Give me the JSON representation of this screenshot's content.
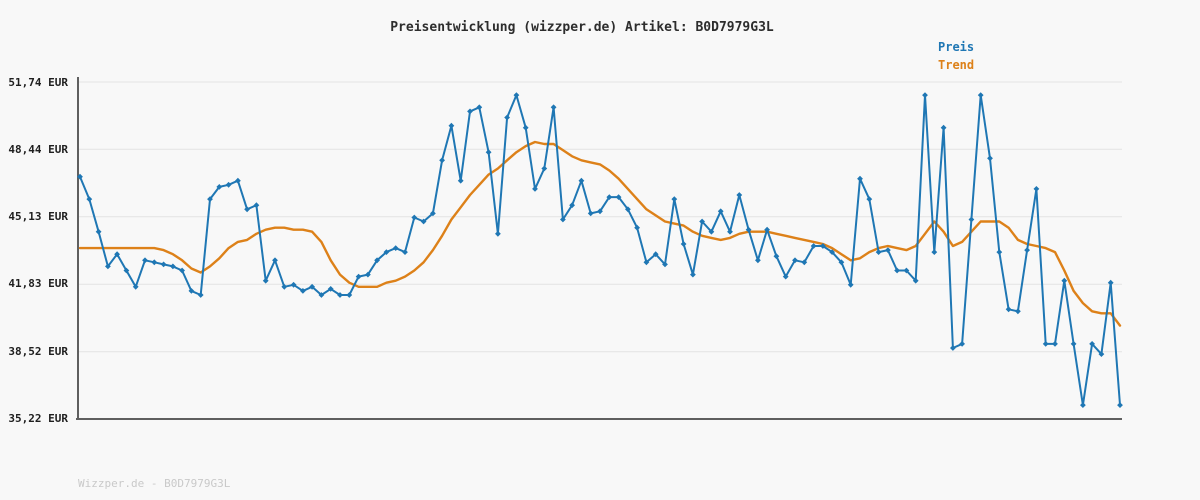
{
  "header": {
    "title": "Preisentwicklung (wizzper.de) Artikel: B0D7979G3L"
  },
  "legend": {
    "items": [
      {
        "label": "Preis",
        "color": "#1f77b4"
      },
      {
        "label": "Trend",
        "color": "#dd8119"
      }
    ]
  },
  "footer": {
    "text": "Wizzper.de - B0D7979G3L"
  },
  "colors": {
    "background": "#f8f8f8",
    "grid": "#e3e3e3",
    "axis": "#5f5f5f",
    "price_line": "#1f77b4",
    "trend_line": "#dd8119",
    "title_text": "#2d2d2d",
    "watermark_text": "#c9c9c9"
  },
  "chart_data": {
    "type": "line",
    "title": "Preisentwicklung (wizzper.de) Artikel: B0D7979G3L",
    "xlabel": "",
    "ylabel": "",
    "x_tick_labels": [],
    "grid": true,
    "legend_position": "top-right",
    "currency": "EUR",
    "ylim": [
      35.22,
      51.74
    ],
    "yticks": [
      {
        "value": 51.74,
        "label": "51,74 EUR"
      },
      {
        "value": 48.44,
        "label": "48,44 EUR"
      },
      {
        "value": 45.13,
        "label": "45,13 EUR"
      },
      {
        "value": 41.83,
        "label": "41,83 EUR"
      },
      {
        "value": 38.52,
        "label": "38,52 EUR"
      },
      {
        "value": 35.22,
        "label": "35,22 EUR"
      }
    ],
    "series": [
      {
        "name": "Trend",
        "color": "#dd8119",
        "width": 2.4,
        "marker": "none",
        "z": 0,
        "values": [
          43.6,
          43.6,
          43.6,
          43.6,
          43.6,
          43.6,
          43.6,
          43.6,
          43.6,
          43.5,
          43.3,
          43.0,
          42.6,
          42.4,
          42.7,
          43.1,
          43.6,
          43.9,
          44.0,
          44.3,
          44.5,
          44.6,
          44.6,
          44.5,
          44.5,
          44.4,
          43.9,
          43.0,
          42.3,
          41.9,
          41.7,
          41.7,
          41.7,
          41.9,
          42.0,
          42.2,
          42.5,
          42.9,
          43.5,
          44.2,
          45.0,
          45.6,
          46.2,
          46.7,
          47.2,
          47.5,
          47.9,
          48.3,
          48.6,
          48.8,
          48.7,
          48.7,
          48.4,
          48.1,
          47.9,
          47.8,
          47.7,
          47.4,
          47.0,
          46.5,
          46.0,
          45.5,
          45.2,
          44.9,
          44.8,
          44.7,
          44.4,
          44.2,
          44.1,
          44.0,
          44.1,
          44.3,
          44.4,
          44.4,
          44.4,
          44.3,
          44.2,
          44.1,
          44.0,
          43.9,
          43.8,
          43.6,
          43.3,
          43.0,
          43.1,
          43.4,
          43.6,
          43.7,
          43.6,
          43.5,
          43.7,
          44.3,
          44.9,
          44.4,
          43.7,
          43.9,
          44.4,
          44.9,
          44.9,
          44.9,
          44.6,
          44.0,
          43.8,
          43.7,
          43.6,
          43.4,
          42.5,
          41.5,
          40.9,
          40.5,
          40.4,
          40.4,
          39.8
        ]
      },
      {
        "name": "Preis",
        "color": "#1f77b4",
        "width": 2,
        "marker": "diamond",
        "z": 1,
        "values": [
          47.1,
          46.0,
          44.4,
          42.7,
          43.3,
          42.5,
          41.7,
          43.0,
          42.9,
          42.8,
          42.7,
          42.5,
          41.5,
          41.3,
          46.0,
          46.6,
          46.7,
          46.9,
          45.5,
          45.7,
          42.0,
          43.0,
          41.7,
          41.8,
          41.5,
          41.7,
          41.3,
          41.6,
          41.3,
          41.3,
          42.2,
          42.3,
          43.0,
          43.4,
          43.6,
          43.4,
          45.1,
          44.9,
          45.3,
          47.9,
          49.6,
          46.9,
          50.3,
          50.5,
          48.3,
          44.3,
          50.0,
          51.1,
          49.5,
          46.5,
          47.5,
          50.5,
          45.0,
          45.7,
          46.9,
          45.3,
          45.4,
          46.1,
          46.1,
          45.5,
          44.6,
          42.9,
          43.3,
          42.8,
          46.0,
          43.8,
          42.3,
          44.9,
          44.4,
          45.4,
          44.4,
          46.2,
          44.5,
          43.0,
          44.5,
          43.2,
          42.2,
          43.0,
          42.9,
          43.7,
          43.7,
          43.4,
          42.9,
          41.8,
          47.0,
          46.0,
          43.4,
          43.5,
          42.5,
          42.5,
          42.0,
          51.1,
          43.4,
          49.5,
          38.7,
          38.9,
          45.0,
          51.1,
          48.0,
          43.4,
          40.6,
          40.5,
          43.5,
          46.5,
          38.9,
          38.9,
          42.0,
          38.9,
          35.9,
          38.9,
          38.4,
          41.9,
          35.9
        ]
      }
    ]
  }
}
